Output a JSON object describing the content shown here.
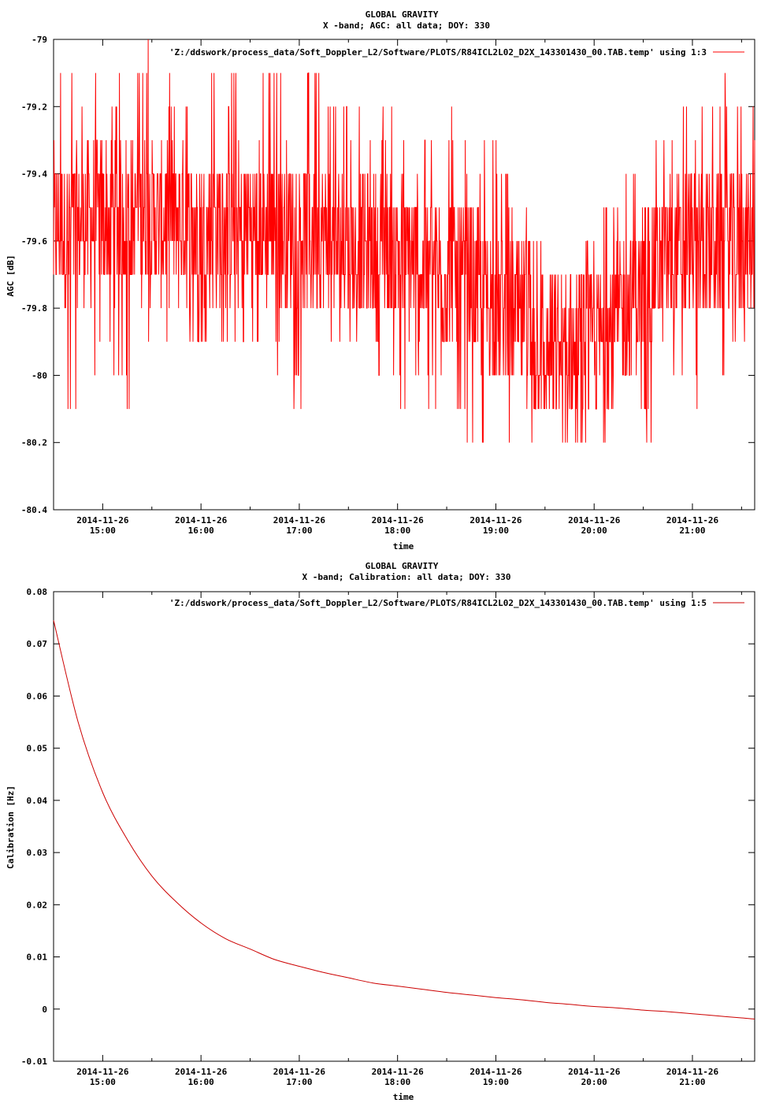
{
  "chart_data": [
    {
      "type": "line",
      "title": "GLOBAL GRAVITY",
      "subtitle": "X -band; AGC: all data; DOY: 330",
      "xlabel": "time",
      "ylabel": "AGC [dB]",
      "ylim": [
        -80.4,
        -79
      ],
      "ytick_values": [
        -80.4,
        -80.2,
        -80,
        -79.8,
        -79.6,
        -79.4,
        -79.2,
        -79
      ],
      "ytick_labels": [
        "-80.4",
        "-80.2",
        "-80",
        "-79.8",
        "-79.6",
        "-79.4",
        "-79.2",
        "-79"
      ],
      "xlim": [
        "2014-11-26 14:30",
        "2014-11-26 21:38"
      ],
      "xtick_values": [
        "2014-11-26 15:00",
        "2014-11-26 16:00",
        "2014-11-26 17:00",
        "2014-11-26 18:00",
        "2014-11-26 19:00",
        "2014-11-26 20:00",
        "2014-11-26 21:00"
      ],
      "xtick_dates": [
        "2014-11-26",
        "2014-11-26",
        "2014-11-26",
        "2014-11-26",
        "2014-11-26",
        "2014-11-26",
        "2014-11-26"
      ],
      "xtick_times": [
        "15:00",
        "16:00",
        "17:00",
        "18:00",
        "19:00",
        "20:00",
        "21:00"
      ],
      "grid": false,
      "legend_position": "top-right",
      "series": [
        {
          "name": "'Z:/ddswork/process_data/Soft_Doppler_L2/Software/PLOTS/R84ICL2L02_D2X_143301430_00.TAB.temp' using 1:3",
          "color": "#ff0000",
          "x": [
            "14:30",
            "14:45",
            "15:00",
            "15:15",
            "15:30",
            "15:45",
            "16:00",
            "16:15",
            "16:30",
            "16:45",
            "17:00",
            "17:15",
            "17:30",
            "17:45",
            "18:00",
            "18:15",
            "18:30",
            "18:45",
            "19:00",
            "19:15",
            "19:30",
            "19:45",
            "20:00",
            "20:15",
            "20:30",
            "20:45",
            "21:00",
            "21:15",
            "21:30"
          ],
          "mean": [
            -79.57,
            -79.55,
            -79.53,
            -79.53,
            -79.53,
            -79.55,
            -79.56,
            -79.56,
            -79.55,
            -79.56,
            -79.56,
            -79.6,
            -79.63,
            -79.63,
            -79.63,
            -79.68,
            -79.7,
            -79.73,
            -79.78,
            -79.85,
            -79.93,
            -79.95,
            -79.92,
            -79.83,
            -79.73,
            -79.65,
            -79.62,
            -79.6,
            -79.6
          ],
          "min": [
            -80.3,
            -80.1,
            -79.95,
            -80.1,
            -79.95,
            -80,
            -79.95,
            -79.95,
            -79.95,
            -79.95,
            -80.1,
            -79.95,
            -79.95,
            -80.1,
            -80.1,
            -80.1,
            -80.1,
            -80.2,
            -80.3,
            -80.3,
            -80.2,
            -80.3,
            -80.2,
            -80.2,
            -80.2,
            -80.05,
            -80.1,
            -80.1,
            -79.9
          ],
          "max": [
            -79.1,
            -79.1,
            -79.1,
            -79.1,
            -79,
            -79.15,
            -79.1,
            -79.1,
            -79,
            -79.05,
            -79,
            -79.1,
            -79.2,
            -79.2,
            -79.2,
            -79.3,
            -79.2,
            -79.3,
            -79.3,
            -79.5,
            -79.6,
            -79.7,
            -79.6,
            -79.4,
            -79.4,
            -79.2,
            -79.2,
            -79.1,
            -79.2
          ]
        }
      ]
    },
    {
      "type": "line",
      "title": "GLOBAL GRAVITY",
      "subtitle": "X -band; Calibration: all data; DOY: 330",
      "xlabel": "time",
      "ylabel": "Calibration [Hz]",
      "ylim": [
        -0.01,
        0.08
      ],
      "ytick_values": [
        -0.01,
        0,
        0.01,
        0.02,
        0.03,
        0.04,
        0.05,
        0.06,
        0.07,
        0.08
      ],
      "ytick_labels": [
        "-0.01",
        "0",
        "0.01",
        "0.02",
        "0.03",
        "0.04",
        "0.05",
        "0.06",
        "0.07",
        "0.08"
      ],
      "xlim": [
        "2014-11-26 14:30",
        "2014-11-26 21:38"
      ],
      "xtick_values": [
        "2014-11-26 15:00",
        "2014-11-26 16:00",
        "2014-11-26 17:00",
        "2014-11-26 18:00",
        "2014-11-26 19:00",
        "2014-11-26 20:00",
        "2014-11-26 21:00"
      ],
      "xtick_dates": [
        "2014-11-26",
        "2014-11-26",
        "2014-11-26",
        "2014-11-26",
        "2014-11-26",
        "2014-11-26",
        "2014-11-26"
      ],
      "xtick_times": [
        "15:00",
        "16:00",
        "17:00",
        "18:00",
        "19:00",
        "20:00",
        "21:00"
      ],
      "grid": false,
      "legend_position": "top-right",
      "series": [
        {
          "name": "'Z:/ddswork/process_data/Soft_Doppler_L2/Software/PLOTS/R84ICL2L02_D2X_143301430_00.TAB.temp' using 1:5",
          "color": "#cc0000",
          "x": [
            "14:30",
            "14:45",
            "15:00",
            "15:15",
            "15:30",
            "15:45",
            "16:00",
            "16:15",
            "16:30",
            "16:45",
            "17:00",
            "17:15",
            "17:30",
            "17:45",
            "18:00",
            "18:15",
            "18:30",
            "18:45",
            "19:00",
            "19:15",
            "19:30",
            "19:45",
            "20:00",
            "20:15",
            "20:30",
            "20:45",
            "21:00",
            "21:15",
            "21:30",
            "21:38"
          ],
          "y": [
            0.0745,
            0.055,
            0.0415,
            0.0325,
            0.0255,
            0.0205,
            0.0165,
            0.0135,
            0.0115,
            0.0095,
            0.0082,
            0.007,
            0.006,
            0.005,
            0.0044,
            0.0038,
            0.0032,
            0.0027,
            0.0022,
            0.0018,
            0.0013,
            0.0009,
            0.0005,
            0.0002,
            -0.0002,
            -0.0005,
            -0.0009,
            -0.0013,
            -0.0017,
            -0.0019
          ]
        }
      ]
    }
  ]
}
